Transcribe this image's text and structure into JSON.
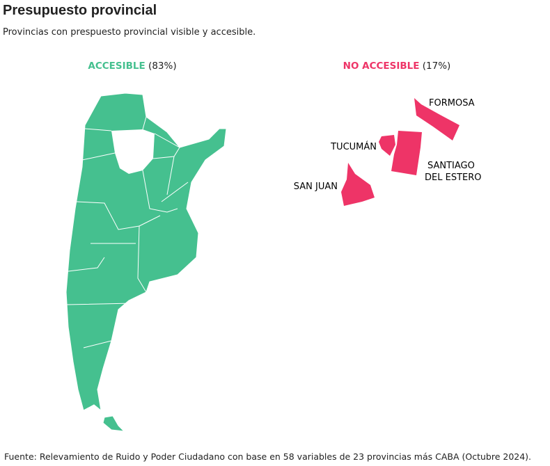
{
  "header": {
    "title": "Presupuesto provincial",
    "subtitle": "Provincias con prespuesto provincial visible y accesible."
  },
  "groups": [
    {
      "label": "ACCESIBLE",
      "share": "(83%)"
    },
    {
      "label": "NO ACCESIBLE",
      "share": "(17%)"
    }
  ],
  "provinces": [
    "FORMOSA",
    "TUCUMÁN",
    "SANTIAGO",
    "DEL ESTERO",
    "SAN JUAN"
  ],
  "source": "Fuente: Relevamiento de Ruido y Poder Ciudadano con base en 58 variables de 23 provincias más CABA (Octubre 2024)."
}
